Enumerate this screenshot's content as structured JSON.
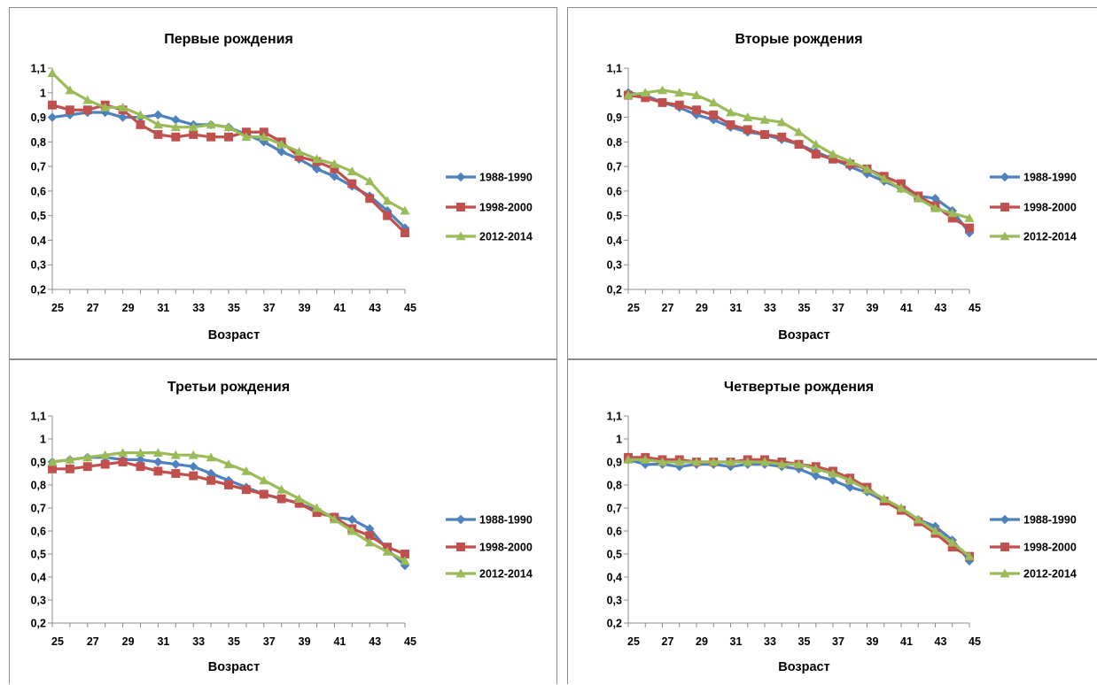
{
  "colors": {
    "s1988": "#4f81bd",
    "s1998": "#c0504d",
    "s2012": "#9bbb59"
  },
  "chart_data": [
    {
      "type": "line",
      "title": "Первые рождения",
      "xlabel": "Возраст",
      "ylabel": "",
      "x": [
        25,
        26,
        27,
        28,
        29,
        30,
        31,
        32,
        33,
        34,
        35,
        36,
        37,
        38,
        39,
        40,
        41,
        42,
        43,
        44,
        45
      ],
      "xticks": [
        "25",
        "27",
        "29",
        "31",
        "33",
        "35",
        "37",
        "39",
        "41",
        "43",
        "45"
      ],
      "yticks": [
        "0,2",
        "0,3",
        "0,4",
        "0,5",
        "0,6",
        "0,7",
        "0,8",
        "0,9",
        "1",
        "1,1"
      ],
      "ylim": [
        0.2,
        1.1
      ],
      "legend_position": "right",
      "series": [
        {
          "name": "1988-1990",
          "marker": "diamond",
          "color": "#4f81bd",
          "values": [
            0.9,
            0.91,
            0.92,
            0.92,
            0.9,
            0.9,
            0.91,
            0.89,
            0.87,
            0.87,
            0.86,
            0.83,
            0.8,
            0.76,
            0.73,
            0.69,
            0.66,
            0.62,
            0.58,
            0.52,
            0.45
          ]
        },
        {
          "name": "1998-2000",
          "marker": "square",
          "color": "#c0504d",
          "values": [
            0.95,
            0.93,
            0.93,
            0.95,
            0.93,
            0.87,
            0.83,
            0.82,
            0.83,
            0.82,
            0.82,
            0.84,
            0.84,
            0.8,
            0.74,
            0.72,
            0.69,
            0.63,
            0.57,
            0.5,
            0.43
          ]
        },
        {
          "name": "2012-2014",
          "marker": "triangle",
          "color": "#9bbb59",
          "values": [
            1.08,
            1.01,
            0.97,
            0.94,
            0.94,
            0.91,
            0.87,
            0.86,
            0.86,
            0.87,
            0.86,
            0.82,
            0.82,
            0.79,
            0.76,
            0.73,
            0.71,
            0.68,
            0.64,
            0.56,
            0.52
          ]
        }
      ]
    },
    {
      "type": "line",
      "title": "Вторые рождения",
      "xlabel": "Возраст",
      "ylabel": "",
      "x": [
        25,
        26,
        27,
        28,
        29,
        30,
        31,
        32,
        33,
        34,
        35,
        36,
        37,
        38,
        39,
        40,
        41,
        42,
        43,
        44,
        45
      ],
      "xticks": [
        "25",
        "27",
        "29",
        "31",
        "33",
        "35",
        "37",
        "39",
        "41",
        "43",
        "45"
      ],
      "yticks": [
        "0,2",
        "0,3",
        "0,4",
        "0,5",
        "0,6",
        "0,7",
        "0,8",
        "0,9",
        "1",
        "1,1"
      ],
      "ylim": [
        0.2,
        1.1
      ],
      "legend_position": "right",
      "series": [
        {
          "name": "1988-1990",
          "marker": "diamond",
          "color": "#4f81bd",
          "values": [
            1.0,
            0.99,
            0.96,
            0.94,
            0.91,
            0.89,
            0.86,
            0.84,
            0.83,
            0.81,
            0.79,
            0.76,
            0.73,
            0.7,
            0.67,
            0.64,
            0.61,
            0.58,
            0.57,
            0.52,
            0.43
          ]
        },
        {
          "name": "1998-2000",
          "marker": "square",
          "color": "#c0504d",
          "values": [
            0.99,
            0.98,
            0.96,
            0.95,
            0.93,
            0.91,
            0.87,
            0.85,
            0.83,
            0.82,
            0.79,
            0.75,
            0.73,
            0.71,
            0.69,
            0.66,
            0.63,
            0.58,
            0.54,
            0.49,
            0.45
          ]
        },
        {
          "name": "2012-2014",
          "marker": "triangle",
          "color": "#9bbb59",
          "values": [
            0.99,
            1.0,
            1.01,
            1.0,
            0.99,
            0.96,
            0.92,
            0.9,
            0.89,
            0.88,
            0.84,
            0.79,
            0.75,
            0.72,
            0.69,
            0.65,
            0.61,
            0.57,
            0.53,
            0.51,
            0.49
          ]
        }
      ]
    },
    {
      "type": "line",
      "title": "Третьи рождения",
      "xlabel": "Возраст",
      "ylabel": "",
      "x": [
        25,
        26,
        27,
        28,
        29,
        30,
        31,
        32,
        33,
        34,
        35,
        36,
        37,
        38,
        39,
        40,
        41,
        42,
        43,
        44,
        45
      ],
      "xticks": [
        "25",
        "27",
        "29",
        "31",
        "33",
        "35",
        "37",
        "39",
        "41",
        "43",
        "45"
      ],
      "yticks": [
        "0,2",
        "0,3",
        "0,4",
        "0,5",
        "0,6",
        "0,7",
        "0,8",
        "0,9",
        "1",
        "1,1"
      ],
      "ylim": [
        0.2,
        1.1
      ],
      "legend_position": "right",
      "series": [
        {
          "name": "1988-1990",
          "marker": "diamond",
          "color": "#4f81bd",
          "values": [
            0.9,
            0.91,
            0.92,
            0.92,
            0.91,
            0.91,
            0.9,
            0.89,
            0.88,
            0.85,
            0.82,
            0.79,
            0.76,
            0.74,
            0.72,
            0.69,
            0.66,
            0.65,
            0.61,
            0.52,
            0.45
          ]
        },
        {
          "name": "1998-2000",
          "marker": "square",
          "color": "#c0504d",
          "values": [
            0.87,
            0.87,
            0.88,
            0.89,
            0.9,
            0.88,
            0.86,
            0.85,
            0.84,
            0.82,
            0.8,
            0.78,
            0.76,
            0.74,
            0.72,
            0.68,
            0.66,
            0.61,
            0.58,
            0.53,
            0.5
          ]
        },
        {
          "name": "2012-2014",
          "marker": "triangle",
          "color": "#9bbb59",
          "values": [
            0.9,
            0.91,
            0.92,
            0.93,
            0.94,
            0.94,
            0.94,
            0.93,
            0.93,
            0.92,
            0.89,
            0.86,
            0.82,
            0.78,
            0.74,
            0.7,
            0.65,
            0.6,
            0.55,
            0.51,
            0.47
          ]
        }
      ]
    },
    {
      "type": "line",
      "title": "Четвертые рождения",
      "xlabel": "Возраст",
      "ylabel": "",
      "x": [
        25,
        26,
        27,
        28,
        29,
        30,
        31,
        32,
        33,
        34,
        35,
        36,
        37,
        38,
        39,
        40,
        41,
        42,
        43,
        44,
        45
      ],
      "xticks": [
        "25",
        "27",
        "29",
        "31",
        "33",
        "35",
        "37",
        "39",
        "41",
        "43",
        "45"
      ],
      "yticks": [
        "0,2",
        "0,3",
        "0,4",
        "0,5",
        "0,6",
        "0,7",
        "0,8",
        "0,9",
        "1",
        "1,1"
      ],
      "ylim": [
        0.2,
        1.1
      ],
      "legend_position": "right",
      "series": [
        {
          "name": "1988-1990",
          "marker": "diamond",
          "color": "#4f81bd",
          "values": [
            0.91,
            0.89,
            0.89,
            0.88,
            0.89,
            0.89,
            0.88,
            0.89,
            0.89,
            0.88,
            0.87,
            0.84,
            0.82,
            0.79,
            0.77,
            0.73,
            0.69,
            0.65,
            0.62,
            0.56,
            0.47
          ]
        },
        {
          "name": "1998-2000",
          "marker": "square",
          "color": "#c0504d",
          "values": [
            0.92,
            0.92,
            0.91,
            0.91,
            0.9,
            0.9,
            0.9,
            0.91,
            0.91,
            0.9,
            0.89,
            0.88,
            0.86,
            0.83,
            0.79,
            0.73,
            0.69,
            0.64,
            0.59,
            0.53,
            0.49
          ]
        },
        {
          "name": "2012-2014",
          "marker": "triangle",
          "color": "#9bbb59",
          "values": [
            0.91,
            0.91,
            0.9,
            0.9,
            0.9,
            0.9,
            0.9,
            0.9,
            0.9,
            0.89,
            0.89,
            0.87,
            0.85,
            0.82,
            0.78,
            0.74,
            0.7,
            0.65,
            0.6,
            0.55,
            0.49
          ]
        }
      ]
    }
  ]
}
